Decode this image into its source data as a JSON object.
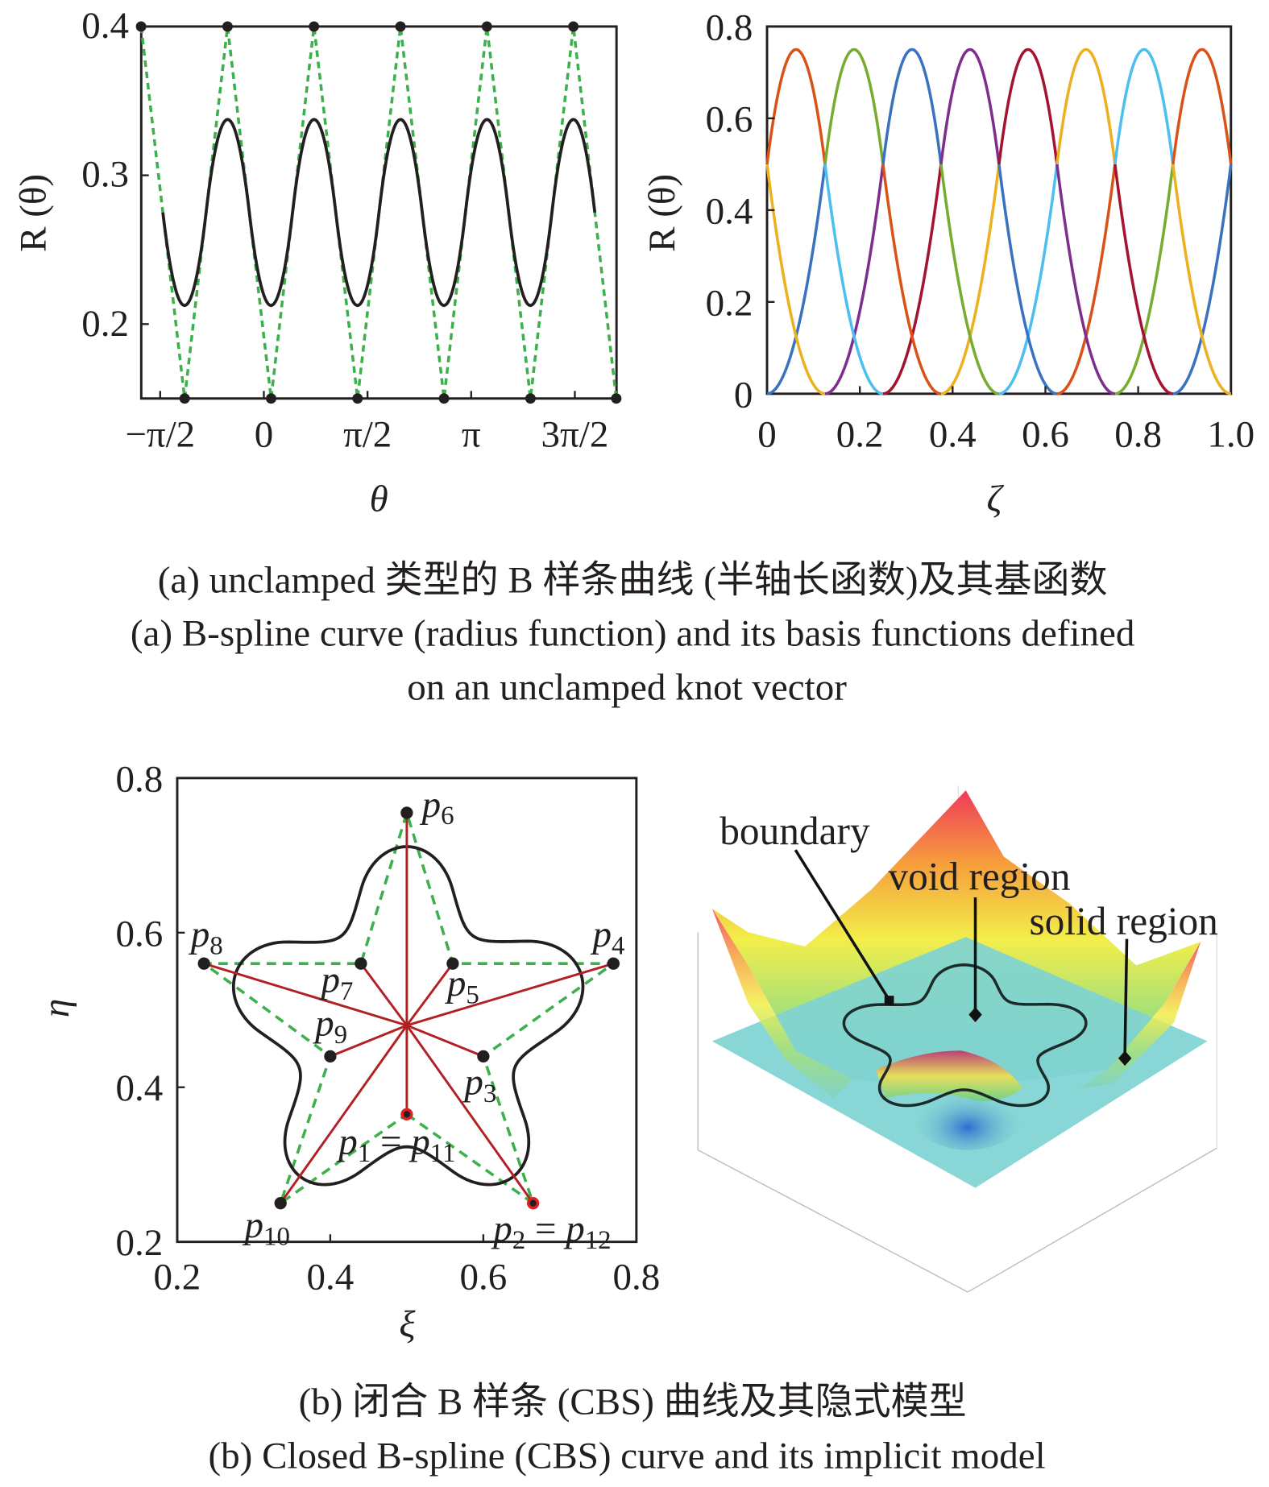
{
  "chart_data": [
    {
      "type": "line",
      "panel": "a-left",
      "xlabel": "θ",
      "ylabel": "R (θ)",
      "ylim": [
        0.15,
        0.4
      ],
      "x_ticks": [
        "−π/2",
        "0",
        "π/2",
        "π",
        "3π/2"
      ],
      "x_tick_values": [
        -1.5708,
        0,
        1.5708,
        3.1416,
        4.7124
      ],
      "y_ticks": [
        "0.2",
        "0.3",
        "0.4"
      ],
      "y_tick_values": [
        0.2,
        0.3,
        0.4
      ],
      "grid": false,
      "control_points": {
        "theta": [
          -1.86,
          -1.2,
          -0.55,
          0.11,
          0.76,
          1.42,
          2.07,
          2.73,
          3.38,
          4.04,
          4.69,
          5.34
        ],
        "R": [
          0.4,
          0.15,
          0.4,
          0.15,
          0.4,
          0.15,
          0.4,
          0.15,
          0.4,
          0.15,
          0.4,
          0.15
        ]
      },
      "control_polygon_color": "#3cb04a",
      "curve_color": "#231f20",
      "curve": "quadratic B-spline (unclamped)"
    },
    {
      "type": "line",
      "panel": "a-right",
      "xlabel": "ζ",
      "ylabel": "R (θ)",
      "xlim": [
        0,
        1.0
      ],
      "ylim": [
        0,
        0.8
      ],
      "x_ticks": [
        "0",
        "0.2",
        "0.4",
        "0.6",
        "0.8",
        "1.0"
      ],
      "x_tick_values": [
        0,
        0.2,
        0.4,
        0.6,
        0.8,
        1.0
      ],
      "y_ticks": [
        "0",
        "0.2",
        "0.4",
        "0.6",
        "0.8"
      ],
      "y_tick_values": [
        0,
        0.2,
        0.4,
        0.6,
        0.8
      ],
      "grid": false,
      "knot_spacing": 0.125,
      "basis_peak": 0.75,
      "basis_knot_value": 0.5,
      "intervals": [
        {
          "start": 0.0,
          "rising": "#3a72c0",
          "peak": "#d95319",
          "falling": "#edb120"
        },
        {
          "start": 0.125,
          "rising": "#7e2f8e",
          "peak": "#77ac30",
          "falling": "#4dbeee"
        },
        {
          "start": 0.25,
          "rising": "#a2142f",
          "peak": "#3a72c0",
          "falling": "#d95319"
        },
        {
          "start": 0.375,
          "rising": "#edb120",
          "peak": "#7e2f8e",
          "falling": "#77ac30"
        },
        {
          "start": 0.5,
          "rising": "#4dbeee",
          "peak": "#a2142f",
          "falling": "#3a72c0"
        },
        {
          "start": 0.625,
          "rising": "#d95319",
          "peak": "#edb120",
          "falling": "#7e2f8e"
        },
        {
          "start": 0.75,
          "rising": "#77ac30",
          "peak": "#4dbeee",
          "falling": "#a2142f"
        },
        {
          "start": 0.875,
          "rising": "#3a72c0",
          "peak": "#d95319",
          "falling": "#edb120"
        }
      ]
    },
    {
      "type": "scatter",
      "panel": "b-left",
      "xlabel": "ξ",
      "ylabel": "η",
      "xlim": [
        0.2,
        0.8
      ],
      "ylim": [
        0.2,
        0.8
      ],
      "x_ticks": [
        "0.2",
        "0.4",
        "0.6",
        "0.8"
      ],
      "x_tick_values": [
        0.2,
        0.4,
        0.6,
        0.8
      ],
      "y_ticks": [
        "0.2",
        "0.4",
        "0.6",
        "0.8"
      ],
      "y_tick_values": [
        0.2,
        0.4,
        0.6,
        0.8
      ],
      "grid": false,
      "center": [
        0.5,
        0.48
      ],
      "points": [
        {
          "label": "p",
          "sub": "1",
          "extra": " = p",
          "extra_sub": "11",
          "x": 0.5,
          "y": 0.365,
          "highlight": true
        },
        {
          "label": "p",
          "sub": "2",
          "extra": " = p",
          "extra_sub": "12",
          "x": 0.665,
          "y": 0.25,
          "highlight": true
        },
        {
          "label": "p",
          "sub": "3",
          "x": 0.6,
          "y": 0.44
        },
        {
          "label": "p",
          "sub": "4",
          "x": 0.77,
          "y": 0.56
        },
        {
          "label": "p",
          "sub": "5",
          "x": 0.56,
          "y": 0.56
        },
        {
          "label": "p",
          "sub": "6",
          "x": 0.5,
          "y": 0.755
        },
        {
          "label": "p",
          "sub": "7",
          "x": 0.44,
          "y": 0.56
        },
        {
          "label": "p",
          "sub": "8",
          "x": 0.235,
          "y": 0.56
        },
        {
          "label": "p",
          "sub": "9",
          "x": 0.4,
          "y": 0.44
        },
        {
          "label": "p",
          "sub": "10",
          "x": 0.335,
          "y": 0.25
        }
      ],
      "spoke_color": "#b22024",
      "control_polygon_color": "#3cb04a",
      "curve_color": "#231f20"
    }
  ],
  "figure_b_right": {
    "labels": {
      "boundary": "boundary",
      "void": "void region",
      "solid": "solid region"
    },
    "plane_color": "#7fd3d3"
  },
  "captions": {
    "a_cn": "(a) unclamped 类型的 B 样条曲线 (半轴长函数)及其基函数",
    "a_en_1": "(a) B-spline curve (radius function) and its basis functions defined",
    "a_en_2": "on an unclamped knot vector",
    "b_cn": "(b) 闭合 B 样条 (CBS) 曲线及其隐式模型",
    "b_en": "(b) Closed B-spline (CBS) curve and its implicit model"
  }
}
